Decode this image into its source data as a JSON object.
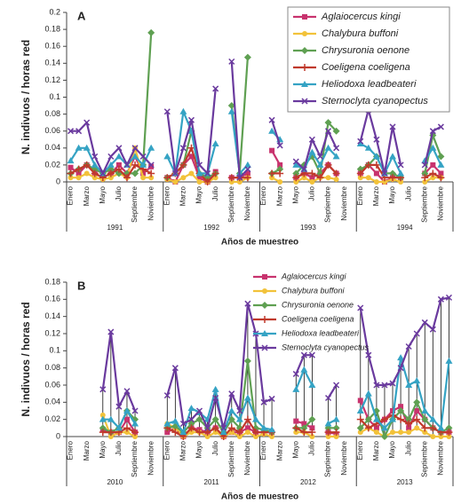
{
  "chart_data": [
    {
      "type": "line",
      "panel_label": "A",
      "y_label": "N. indivuos / horas red",
      "x_label": "Años de muestreo",
      "ylim": [
        0,
        0.2
      ],
      "yticks": [
        0,
        0.02,
        0.04,
        0.06,
        0.08,
        0.1,
        0.12,
        0.14,
        0.16,
        0.18,
        0.2
      ],
      "legend": "top-right",
      "legend_box": true,
      "hi_low_lines": false,
      "groups": [
        "1991",
        "1992",
        "1993",
        "1994"
      ],
      "categories": [
        "Enero",
        null,
        "Marzo",
        null,
        "Mayo",
        null,
        "Julio",
        null,
        "Septiembre",
        null,
        "Noviembre",
        null,
        "Enero",
        null,
        "Marzo",
        null,
        "Mayo",
        null,
        "Julio",
        null,
        "Septiembre",
        null,
        "Noviembre",
        null,
        "Enero",
        null,
        "Marzo",
        null,
        "Mayo",
        null,
        "Julio",
        null,
        "Septiembre",
        null,
        "Noviembre",
        null,
        "Enero",
        null,
        "Marzo",
        null,
        "Mayo",
        null,
        "Julio",
        null,
        "Septiembre",
        null,
        "Noviembre",
        null
      ],
      "series": [
        {
          "name": "Aglaiocercus kingi",
          "color": "#c8336e",
          "marker": "square",
          "values": [
            0.017,
            0.01,
            0.02,
            0.01,
            0.005,
            0.01,
            0.02,
            0.01,
            0.03,
            0.01,
            0.018,
            null,
            0.005,
            0,
            0.02,
            0.03,
            0.005,
            0,
            0.012,
            null,
            0.005,
            0.005,
            0.01,
            null,
            null,
            0.037,
            0.02,
            null,
            0.005,
            0.01,
            0.005,
            0.01,
            0.02,
            0.01,
            null,
            null,
            0.01,
            0.02,
            0.01,
            0,
            0.005,
            0.005,
            null,
            null,
            0.01,
            0.02,
            0.01,
            null
          ]
        },
        {
          "name": "Chalybura buffoni",
          "color": "#f2c23a",
          "marker": "circle",
          "values": [
            0.005,
            0.005,
            0.01,
            0.005,
            0.003,
            0.005,
            0.01,
            0.005,
            0.04,
            0.005,
            0.005,
            null,
            0.003,
            0,
            0.005,
            0.01,
            0,
            0,
            0.005,
            null,
            0,
            0,
            0.005,
            null,
            null,
            0.005,
            0,
            null,
            0,
            0.005,
            0,
            0.005,
            0.005,
            0.003,
            null,
            null,
            0.005,
            0.005,
            0,
            0,
            0.003,
            0,
            null,
            null,
            0,
            0.005,
            0.005,
            null
          ]
        },
        {
          "name": "Chrysuronia oenone",
          "color": "#5fa052",
          "marker": "diamond",
          "values": [
            0.01,
            0.015,
            0.02,
            0.015,
            0.01,
            0.015,
            0.01,
            0.01,
            0.01,
            0.02,
            0.176,
            null,
            0.005,
            0.01,
            0.02,
            0.06,
            0.01,
            0.005,
            0.01,
            null,
            0.09,
            0.01,
            0.147,
            null,
            null,
            0.01,
            0.015,
            null,
            0.01,
            0.02,
            0.03,
            0.01,
            0.07,
            0.06,
            null,
            null,
            0.015,
            0.02,
            0.03,
            0.01,
            0.01,
            0.005,
            null,
            null,
            0.01,
            0.055,
            0.03,
            null
          ]
        },
        {
          "name": "Coeligena coeligena",
          "color": "#c0392b",
          "marker": "plus",
          "values": [
            0.01,
            0.015,
            0.02,
            0.01,
            0.005,
            0.01,
            0.015,
            0.005,
            0.02,
            0.015,
            0.01,
            null,
            0.005,
            0.01,
            0.02,
            0.04,
            0.01,
            0,
            0.01,
            null,
            0.005,
            0.005,
            0.005,
            null,
            null,
            0.01,
            0.01,
            null,
            0.005,
            0.01,
            0.01,
            0.005,
            0.02,
            0.01,
            null,
            null,
            0.01,
            0.02,
            0.02,
            0.005,
            0.005,
            0.005,
            null,
            null,
            0.005,
            0.01,
            0.005,
            null
          ]
        },
        {
          "name": "Heliodoxa leadbeateri",
          "color": "#35a3c4",
          "marker": "triangle",
          "values": [
            0.025,
            0.04,
            0.04,
            0.02,
            0.01,
            0.02,
            0.03,
            0.02,
            0.03,
            0.02,
            0.04,
            null,
            0.03,
            0.01,
            0.083,
            0.06,
            0.01,
            0.01,
            0.045,
            null,
            0.083,
            0.01,
            0.02,
            null,
            null,
            0.06,
            0.05,
            null,
            0.02,
            0.015,
            0.035,
            0.02,
            0.04,
            0.03,
            null,
            null,
            0.045,
            0.04,
            0.03,
            0.01,
            0.03,
            0.01,
            null,
            null,
            0.025,
            0.04,
            0.02,
            null
          ]
        },
        {
          "name": "Sternoclyta cyanopectus",
          "color": "#6a3a9e",
          "marker": "x",
          "values": [
            0.06,
            0.06,
            0.07,
            0.03,
            0.01,
            0.03,
            0.04,
            0.02,
            0.04,
            0.03,
            0.02,
            null,
            0.083,
            0.01,
            0.04,
            0.073,
            0.02,
            0.01,
            0.11,
            null,
            0.142,
            0.005,
            0.015,
            null,
            null,
            0.073,
            0.043,
            null,
            0.024,
            0.015,
            0.05,
            0.03,
            0.06,
            0.04,
            null,
            null,
            0.048,
            0.085,
            0.05,
            0.01,
            0.065,
            0.02,
            null,
            null,
            0.02,
            0.06,
            0.065,
            null
          ]
        }
      ]
    },
    {
      "type": "line",
      "panel_label": "B",
      "y_label": "N. indivuos / horas red",
      "x_label": "Años de muestreo",
      "ylim": [
        0,
        0.18
      ],
      "yticks": [
        0,
        0.02,
        0.04,
        0.06,
        0.08,
        0.1,
        0.12,
        0.14,
        0.16,
        0.18
      ],
      "legend": "top-right",
      "legend_box": false,
      "hi_low_lines": true,
      "groups": [
        "2010",
        "2011",
        "2012",
        "2013"
      ],
      "categories": [
        "Enero",
        null,
        "Marzo",
        null,
        "Mayo",
        null,
        "Julio",
        null,
        "Septiembre",
        null,
        "Noviembre",
        null,
        "Enero",
        null,
        "Marzo",
        null,
        "Mayo",
        null,
        "Julio",
        null,
        "Septiembre",
        null,
        "Noviembre",
        null,
        "Enero",
        null,
        "Marzo",
        null,
        "Mayo",
        null,
        "Julio",
        null,
        "Septiembre",
        null,
        "Noviembre",
        null,
        "Enero",
        null,
        "Marzo",
        null,
        "Mayo",
        null,
        "Julio",
        null,
        "Septiembre",
        null,
        "Noviembre",
        null
      ],
      "series": [
        {
          "name": "Aglaiocercus kingi",
          "color": "#c8336e",
          "marker": "square",
          "values": [
            null,
            null,
            null,
            null,
            0.008,
            0.005,
            0.005,
            0.02,
            0.005,
            null,
            null,
            null,
            0.005,
            0.01,
            0,
            0.01,
            0.008,
            0.005,
            0.01,
            0,
            0.005,
            0.005,
            0.01,
            0.005,
            0.005,
            0.005,
            null,
            null,
            0.018,
            0.015,
            0.01,
            null,
            0.005,
            0.003,
            null,
            null,
            0.042,
            0.02,
            0.01,
            0.02,
            0.03,
            0.035,
            0.01,
            0.03,
            0.02,
            0.01,
            0.005,
            0.005
          ]
        },
        {
          "name": "Chalybura buffoni",
          "color": "#f2c23a",
          "marker": "circle",
          "values": [
            null,
            null,
            null,
            null,
            0.025,
            0,
            0.005,
            0.005,
            0,
            null,
            null,
            null,
            0.015,
            0.01,
            0,
            0.005,
            0.005,
            0,
            0.005,
            0,
            0.005,
            0,
            0.005,
            0,
            0.003,
            0,
            null,
            null,
            0.005,
            0.005,
            0,
            null,
            0,
            0,
            null,
            null,
            0.005,
            0.01,
            0.005,
            0,
            0.005,
            0.005,
            0.005,
            0.01,
            0.005,
            0,
            0,
            0
          ]
        },
        {
          "name": "Chrysuronia oenone",
          "color": "#5fa052",
          "marker": "diamond",
          "values": [
            null,
            null,
            null,
            null,
            0.01,
            0.005,
            0.01,
            0.03,
            0.02,
            null,
            null,
            null,
            0.01,
            0.012,
            0.005,
            0.015,
            0.02,
            0.01,
            0.02,
            0.005,
            0.02,
            0.01,
            0.088,
            0.01,
            0.008,
            0.005,
            null,
            null,
            0.01,
            0.01,
            0.02,
            null,
            0.01,
            0.01,
            null,
            null,
            0.01,
            0.02,
            0.03,
            0,
            0.02,
            0.03,
            0.02,
            0.04,
            0.02,
            0.01,
            0.005,
            0.01
          ]
        },
        {
          "name": "Coeligena coeligena",
          "color": "#c0392b",
          "marker": "plus",
          "values": [
            null,
            null,
            null,
            null,
            0.005,
            0.005,
            0.005,
            0.01,
            0.005,
            null,
            null,
            null,
            0.01,
            0.005,
            0,
            0.01,
            0.005,
            0.005,
            0.01,
            0,
            0.01,
            0.005,
            0.02,
            0.005,
            0.005,
            0.005,
            null,
            null,
            0.01,
            0.005,
            0.005,
            null,
            0.005,
            0.005,
            null,
            null,
            0.02,
            0.01,
            0.015,
            0.02,
            0.025,
            0.02,
            0.015,
            0.02,
            0.01,
            0.01,
            0.005,
            0.005
          ]
        },
        {
          "name": "Heliodoxa leadbeateri",
          "color": "#35a3c4",
          "marker": "triangle",
          "values": [
            null,
            null,
            null,
            null,
            0.02,
            0.02,
            0.01,
            0.03,
            0.015,
            null,
            null,
            null,
            0.015,
            0.018,
            0.005,
            0.033,
            0.028,
            0.02,
            0.055,
            0.005,
            0.03,
            0.02,
            0.045,
            0.02,
            0.01,
            0.008,
            null,
            null,
            0.055,
            0.078,
            0.06,
            null,
            0.015,
            0.02,
            null,
            null,
            0.03,
            0.05,
            0.02,
            0.01,
            0.02,
            0.092,
            0.06,
            0.065,
            0.03,
            0.02,
            0.01,
            0.088
          ]
        },
        {
          "name": "Sternoclyta cyanopectus",
          "color": "#6a3a9e",
          "marker": "x",
          "values": [
            null,
            null,
            null,
            null,
            0.055,
            0.122,
            0.035,
            0.053,
            0.03,
            null,
            null,
            null,
            0.048,
            0.08,
            0.015,
            0.02,
            0.03,
            0.01,
            0.045,
            0.01,
            0.05,
            0.03,
            0.155,
            0.12,
            0.04,
            0.044,
            null,
            null,
            0.073,
            0.095,
            0.095,
            null,
            0.045,
            0.06,
            null,
            null,
            0.15,
            0.095,
            0.06,
            0.06,
            0.062,
            0.08,
            0.105,
            0.12,
            0.133,
            0.125,
            0.16,
            0.162
          ]
        }
      ]
    }
  ]
}
